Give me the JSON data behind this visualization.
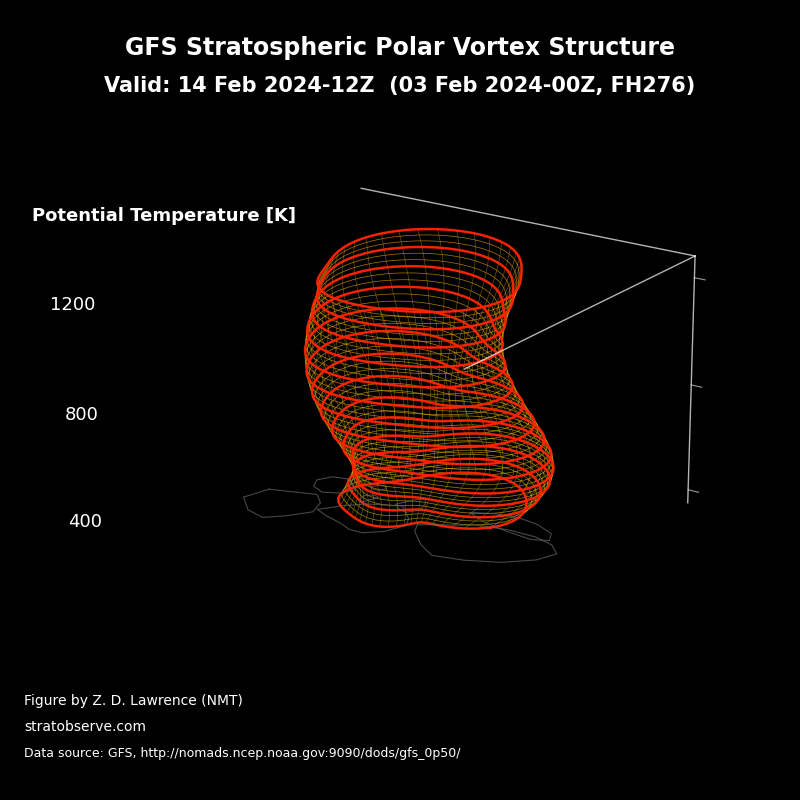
{
  "title_line1": "GFS Stratospheric Polar Vortex Structure",
  "title_line2": "Valid: 14 Feb 2024-12Z  (03 Feb 2024-00Z, FH276)",
  "ylabel": "Potential Temperature [K]",
  "yticks": [
    400,
    800,
    1200
  ],
  "footer_line1": "Figure by Z. D. Lawrence (NMT)",
  "footer_line2": "stratobserve.com",
  "footer_line3": "Data source: GFS, http://nomads.ncep.noaa.gov:9090/dods/gfs_0p50/",
  "background_color": "#000000",
  "text_color": "#ffffff",
  "map_color": "#666666",
  "n_levels": 40,
  "theta_min": 380,
  "theta_max": 1280
}
